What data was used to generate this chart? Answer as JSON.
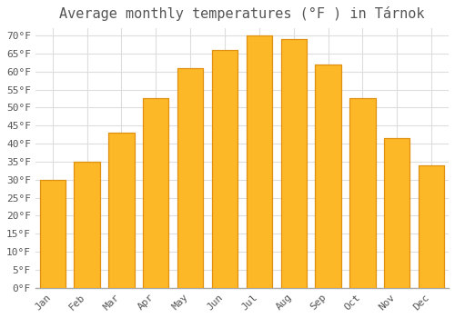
{
  "title": "Average monthly temperatures (°F ) in Tárnok",
  "months": [
    "Jan",
    "Feb",
    "Mar",
    "Apr",
    "May",
    "Jun",
    "Jul",
    "Aug",
    "Sep",
    "Oct",
    "Nov",
    "Dec"
  ],
  "values": [
    30,
    35,
    43,
    52.5,
    61,
    66,
    70,
    69,
    62,
    52.5,
    41.5,
    34
  ],
  "bar_color_main": "#FDB827",
  "bar_color_edge": "#E09010",
  "background_color": "#ffffff",
  "plot_bg_color": "#ffffff",
  "ylim": [
    0,
    72
  ],
  "ytick_step": 5,
  "title_fontsize": 11,
  "tick_fontsize": 8,
  "grid_color": "#dddddd",
  "text_color": "#555555"
}
